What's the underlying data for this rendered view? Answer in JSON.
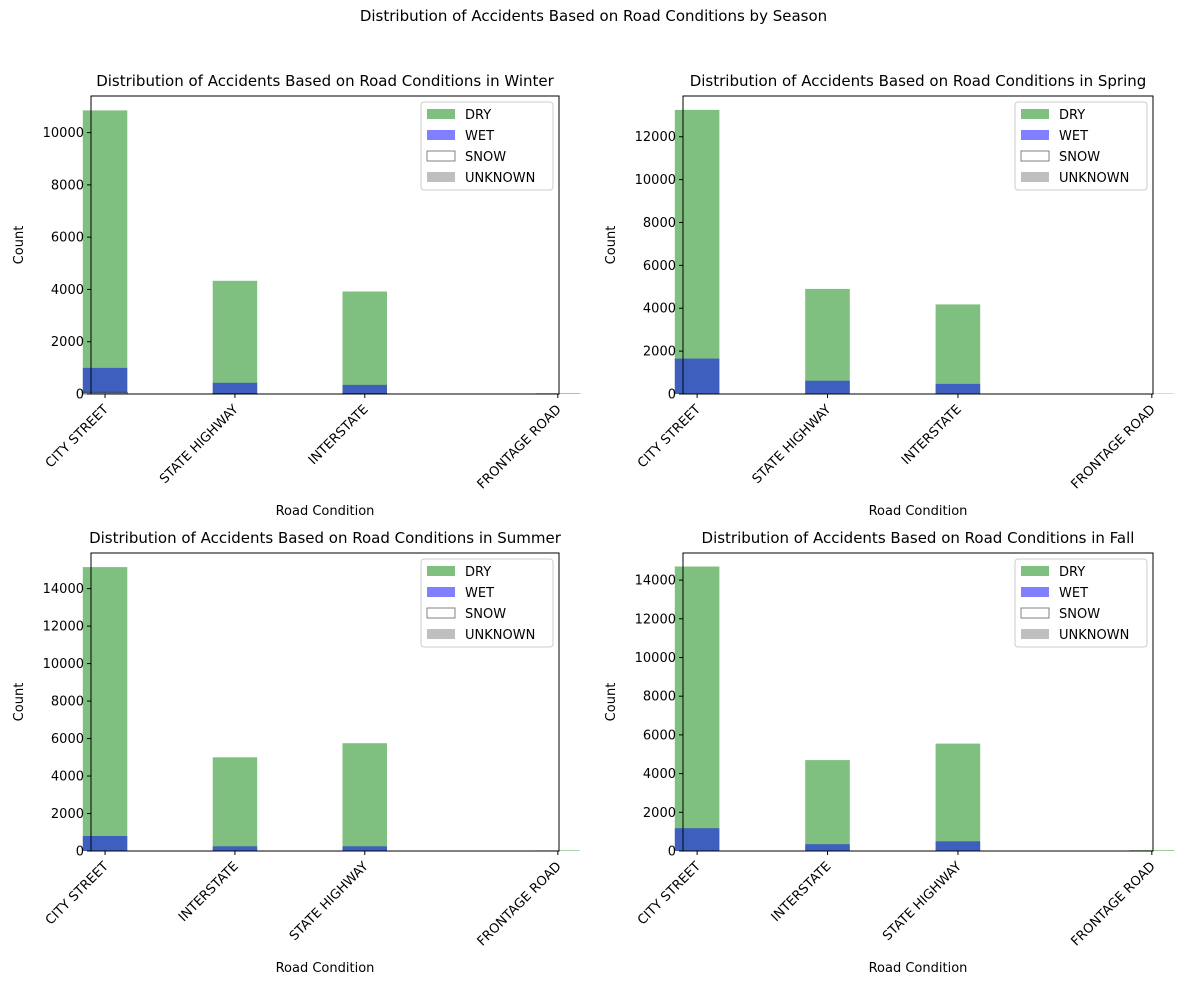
{
  "suptitle": "Distribution of Accidents Based on Road Conditions by Season",
  "legend_entries": [
    {
      "label": "DRY",
      "color": "#7fbf7f"
    },
    {
      "label": "WET",
      "color": "#7f7fff"
    },
    {
      "label": "SNOW",
      "color": "#ffffff"
    },
    {
      "label": "UNKNOWN",
      "color": "#bfbfbf"
    }
  ],
  "chart_data": [
    {
      "type": "bar",
      "title": "Distribution of Accidents Based on Road Conditions in Winter",
      "xlabel": "Road Condition",
      "ylabel": "Count",
      "categories": [
        "CITY STREET",
        "STATE HIGHWAY",
        "INTERSTATE",
        "FRONTAGE ROAD"
      ],
      "ylim": [
        0,
        11400
      ],
      "yticks": [
        0,
        2000,
        4000,
        6000,
        8000,
        10000
      ],
      "legend_position": "top-right",
      "series": [
        {
          "name": "DRY",
          "values": [
            10850,
            4330,
            3920,
            30
          ]
        },
        {
          "name": "WET",
          "values": [
            1000,
            430,
            350,
            0
          ]
        },
        {
          "name": "SNOW",
          "values": [
            60,
            10,
            10,
            0
          ]
        },
        {
          "name": "UNKNOWN",
          "values": [
            0,
            0,
            0,
            0
          ]
        }
      ]
    },
    {
      "type": "bar",
      "title": "Distribution of Accidents Based on Road Conditions in Spring",
      "xlabel": "Road Condition",
      "ylabel": "Count",
      "categories": [
        "CITY STREET",
        "STATE HIGHWAY",
        "INTERSTATE",
        "FRONTAGE ROAD"
      ],
      "ylim": [
        0,
        13900
      ],
      "yticks": [
        0,
        2000,
        4000,
        6000,
        8000,
        10000,
        12000
      ],
      "legend_position": "top-right",
      "series": [
        {
          "name": "DRY",
          "values": [
            13250,
            4900,
            4180,
            20
          ]
        },
        {
          "name": "WET",
          "values": [
            1650,
            620,
            470,
            0
          ]
        },
        {
          "name": "SNOW",
          "values": [
            0,
            0,
            0,
            0
          ]
        },
        {
          "name": "UNKNOWN",
          "values": [
            0,
            0,
            0,
            0
          ]
        }
      ]
    },
    {
      "type": "bar",
      "title": "Distribution of Accidents Based on Road Conditions in Summer",
      "xlabel": "Road Condition",
      "ylabel": "Count",
      "categories": [
        "CITY STREET",
        "INTERSTATE",
        "STATE HIGHWAY",
        "FRONTAGE ROAD"
      ],
      "ylim": [
        0,
        15900
      ],
      "yticks": [
        0,
        2000,
        4000,
        6000,
        8000,
        10000,
        12000,
        14000
      ],
      "legend_position": "top-right",
      "series": [
        {
          "name": "DRY",
          "values": [
            15150,
            5000,
            5750,
            30
          ]
        },
        {
          "name": "WET",
          "values": [
            800,
            250,
            250,
            0
          ]
        },
        {
          "name": "SNOW",
          "values": [
            0,
            0,
            0,
            0
          ]
        },
        {
          "name": "UNKNOWN",
          "values": [
            0,
            0,
            0,
            0
          ]
        }
      ]
    },
    {
      "type": "bar",
      "title": "Distribution of Accidents Based on Road Conditions in Fall",
      "xlabel": "Road Condition",
      "ylabel": "Count",
      "categories": [
        "CITY STREET",
        "INTERSTATE",
        "STATE HIGHWAY",
        "FRONTAGE ROAD"
      ],
      "ylim": [
        0,
        15400
      ],
      "yticks": [
        0,
        2000,
        4000,
        6000,
        8000,
        10000,
        12000,
        14000
      ],
      "legend_position": "top-right",
      "series": [
        {
          "name": "DRY",
          "values": [
            14700,
            4700,
            5550,
            40
          ]
        },
        {
          "name": "WET",
          "values": [
            1180,
            350,
            500,
            0
          ]
        },
        {
          "name": "SNOW",
          "values": [
            0,
            0,
            0,
            0
          ]
        },
        {
          "name": "UNKNOWN",
          "values": [
            0,
            0,
            0,
            0
          ]
        }
      ]
    }
  ]
}
